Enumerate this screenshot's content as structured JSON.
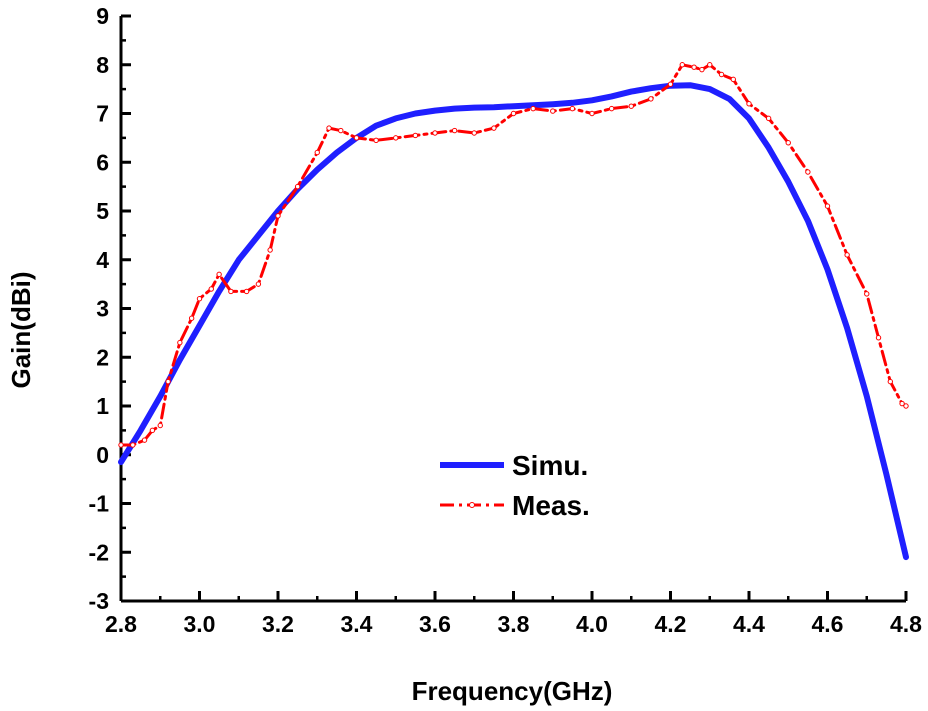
{
  "chart_data": {
    "type": "line",
    "xlabel": "Frequency(GHz)",
    "ylabel": "Gain(dBi)",
    "xlim": [
      2.8,
      4.8
    ],
    "ylim": [
      -3,
      9
    ],
    "xticks": [
      "2.8",
      "3.0",
      "3.2",
      "3.4",
      "3.6",
      "3.8",
      "4.0",
      "4.2",
      "4.4",
      "4.6",
      "4.8"
    ],
    "yticks": [
      "-3",
      "-2",
      "-1",
      "0",
      "1",
      "2",
      "3",
      "4",
      "5",
      "6",
      "7",
      "8",
      "9"
    ],
    "grid": false,
    "legend_position": "center-bottom",
    "series": [
      {
        "name": "Simu.",
        "color": "#1f1fff",
        "style": "solid",
        "x": [
          2.8,
          2.85,
          2.9,
          2.95,
          3.0,
          3.05,
          3.1,
          3.15,
          3.2,
          3.25,
          3.3,
          3.35,
          3.4,
          3.45,
          3.5,
          3.55,
          3.6,
          3.65,
          3.7,
          3.75,
          3.8,
          3.85,
          3.9,
          3.95,
          4.0,
          4.05,
          4.1,
          4.15,
          4.2,
          4.25,
          4.3,
          4.35,
          4.4,
          4.45,
          4.5,
          4.55,
          4.6,
          4.65,
          4.7,
          4.75,
          4.8
        ],
        "y": [
          -0.15,
          0.5,
          1.2,
          1.95,
          2.65,
          3.35,
          4.0,
          4.5,
          5.0,
          5.45,
          5.85,
          6.2,
          6.5,
          6.75,
          6.9,
          7.0,
          7.06,
          7.1,
          7.12,
          7.13,
          7.15,
          7.17,
          7.19,
          7.22,
          7.27,
          7.35,
          7.45,
          7.52,
          7.57,
          7.58,
          7.5,
          7.3,
          6.9,
          6.3,
          5.6,
          4.8,
          3.8,
          2.6,
          1.2,
          -0.4,
          -2.1
        ]
      },
      {
        "name": "Meas.",
        "color": "#ff0000",
        "style": "dash-dot-circle",
        "x": [
          2.8,
          2.83,
          2.86,
          2.88,
          2.9,
          2.92,
          2.95,
          2.98,
          3.0,
          3.03,
          3.05,
          3.08,
          3.12,
          3.15,
          3.18,
          3.2,
          3.25,
          3.3,
          3.33,
          3.36,
          3.4,
          3.45,
          3.5,
          3.55,
          3.6,
          3.65,
          3.7,
          3.75,
          3.8,
          3.85,
          3.9,
          3.95,
          4.0,
          4.05,
          4.1,
          4.15,
          4.2,
          4.23,
          4.26,
          4.28,
          4.3,
          4.33,
          4.36,
          4.4,
          4.45,
          4.5,
          4.55,
          4.6,
          4.65,
          4.7,
          4.73,
          4.76,
          4.79,
          4.8
        ],
        "y": [
          0.2,
          0.2,
          0.3,
          0.5,
          0.6,
          1.5,
          2.3,
          2.8,
          3.2,
          3.4,
          3.7,
          3.35,
          3.35,
          3.5,
          4.2,
          4.9,
          5.5,
          6.2,
          6.7,
          6.65,
          6.5,
          6.45,
          6.5,
          6.55,
          6.6,
          6.65,
          6.6,
          6.7,
          7.0,
          7.1,
          7.05,
          7.1,
          7.0,
          7.1,
          7.15,
          7.3,
          7.6,
          8.0,
          7.95,
          7.9,
          8.0,
          7.8,
          7.7,
          7.2,
          6.9,
          6.4,
          5.8,
          5.1,
          4.1,
          3.3,
          2.4,
          1.5,
          1.05,
          1.0
        ]
      }
    ]
  }
}
